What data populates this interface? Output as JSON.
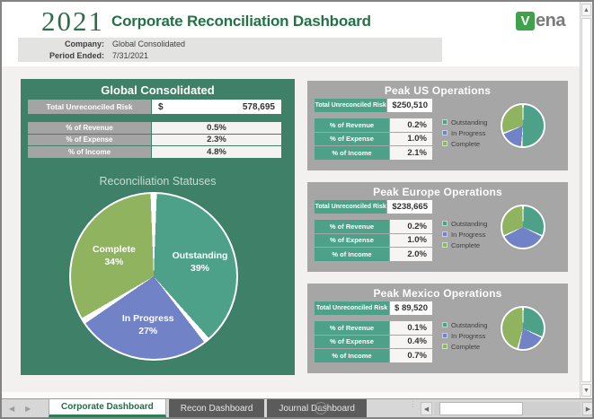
{
  "header": {
    "year": "2021",
    "title": "Corporate Reconciliation Dashboard",
    "logo": {
      "v": "V",
      "rest": "ena"
    }
  },
  "filters": {
    "company_label": "Company:",
    "company_value": "Global Consolidated",
    "period_label": "Period Ended:",
    "period_value": "7/31/2021"
  },
  "left_panel": {
    "title": "Global Consolidated",
    "risk_label": "Total Unreconciled Risk",
    "currency": "$",
    "risk_value": "578,695",
    "metrics": [
      {
        "label": "% of Revenue",
        "value": "0.5%"
      },
      {
        "label": "% of Expense",
        "value": "2.3%"
      },
      {
        "label": "% of Income",
        "value": "4.8%"
      }
    ],
    "pie_title": "Reconciliation Statuses"
  },
  "regions": [
    {
      "title": "Peak US Operations",
      "risk_label": "Total Unreconciled Risk",
      "currency": "$",
      "risk_value": "250,510",
      "metrics": [
        {
          "label": "% of Revenue",
          "value": "0.2%"
        },
        {
          "label": "% of Expense",
          "value": "1.0%"
        },
        {
          "label": "% of Income",
          "value": "2.1%"
        }
      ]
    },
    {
      "title": "Peak Europe Operations",
      "risk_label": "Total Unreconciled Risk",
      "currency": "$",
      "risk_value": "238,665",
      "metrics": [
        {
          "label": "% of Revenue",
          "value": "0.2%"
        },
        {
          "label": "% of Expense",
          "value": "1.0%"
        },
        {
          "label": "% of Income",
          "value": "2.0%"
        }
      ]
    },
    {
      "title": "Peak Mexico Operations",
      "risk_label": "Total Unreconciled Risk",
      "currency": "$",
      "risk_value": "89,520",
      "metrics": [
        {
          "label": "% of Revenue",
          "value": "0.1%"
        },
        {
          "label": "% of Expense",
          "value": "0.4%"
        },
        {
          "label": "% of Income",
          "value": "0.7%"
        }
      ]
    }
  ],
  "legend": {
    "items": [
      "Outstanding",
      "In Progress",
      "Complete"
    ]
  },
  "sheet_bar": {
    "tabs": [
      {
        "label": "Corporate Dashboard",
        "active": true
      },
      {
        "label": "Recon Dashboard",
        "active": false
      },
      {
        "label": "Journal Dashboard",
        "active": false
      }
    ],
    "add_label": "+"
  },
  "colors": {
    "title_green": "#217346",
    "panel_green": "#3F8168",
    "status_outstanding": "#4EA189",
    "status_in_progress": "#7282C7",
    "status_complete": "#90B360",
    "panel_gray": "#A6A6A6",
    "label_gray": "#A4A4A4",
    "vena_green": "#3EA24B"
  },
  "chart_data": [
    {
      "type": "pie",
      "title": "Reconciliation Statuses",
      "labels": [
        "Outstanding",
        "In Progress",
        "Complete"
      ],
      "values": [
        39,
        27,
        34
      ],
      "colors": [
        "#4EA189",
        "#7282C7",
        "#90B360"
      ],
      "data_labels": true,
      "legend_position": "none"
    },
    {
      "type": "pie",
      "title": "Peak US Operations statuses",
      "labels": [
        "Outstanding",
        "In Progress",
        "Complete"
      ],
      "values": [
        51,
        18,
        31
      ],
      "colors": [
        "#4EA189",
        "#7282C7",
        "#90B360"
      ],
      "data_labels": false,
      "legend_position": "left"
    },
    {
      "type": "pie",
      "title": "Peak Europe Operations statuses",
      "labels": [
        "Outstanding",
        "In Progress",
        "Complete"
      ],
      "values": [
        32,
        36,
        32
      ],
      "colors": [
        "#4EA189",
        "#7282C7",
        "#90B360"
      ],
      "data_labels": false,
      "legend_position": "left"
    },
    {
      "type": "pie",
      "title": "Peak Mexico Operations statuses",
      "labels": [
        "Outstanding",
        "In Progress",
        "Complete"
      ],
      "values": [
        32,
        22,
        46
      ],
      "colors": [
        "#4EA189",
        "#7282C7",
        "#90B360"
      ],
      "data_labels": false,
      "legend_position": "left"
    }
  ]
}
